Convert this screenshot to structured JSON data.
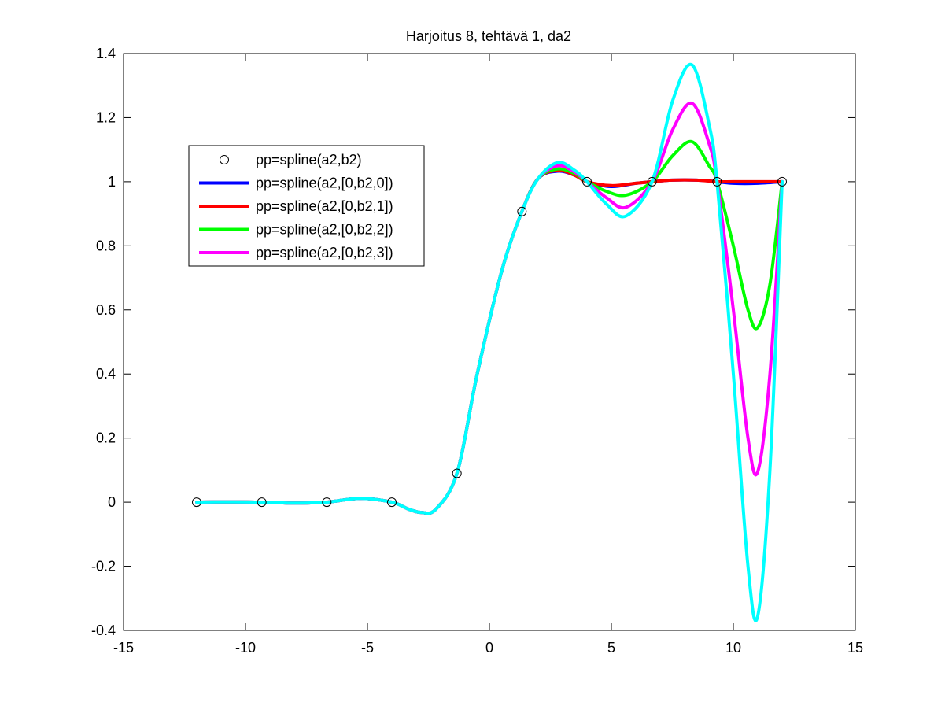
{
  "chart_data": {
    "type": "line",
    "title": "Harjoitus 8, tehtävä 1, da2",
    "xlabel": "",
    "ylabel": "",
    "xlim": [
      -15,
      15
    ],
    "ylim": [
      -0.4,
      1.4
    ],
    "xticks": [
      -15,
      -10,
      -5,
      0,
      5,
      10,
      15
    ],
    "yticks": [
      -0.4,
      -0.2,
      0,
      0.2,
      0.4,
      0.6,
      0.8,
      1,
      1.2,
      1.4
    ],
    "xtick_labels": [
      "-15",
      "-10",
      "-5",
      "0",
      "5",
      "10",
      "15"
    ],
    "ytick_labels": [
      "-0.4",
      "-0.2",
      "0",
      "0.2",
      "0.4",
      "0.6",
      "0.8",
      "1",
      "1.2",
      "1.4"
    ],
    "grid": false,
    "legend_position": "upper-left",
    "markers": {
      "name": "pp=spline(a2,b2)",
      "style": "open-circle",
      "color": "#000000",
      "x": [
        -12,
        -9.333,
        -6.667,
        -4,
        -1.333,
        1.333,
        4,
        6.667,
        9.333,
        12
      ],
      "y": [
        0,
        0,
        0,
        0,
        0.09,
        0.907,
        1,
        1,
        1,
        1
      ]
    },
    "series": [
      {
        "name": "pp=spline(a2,[0,b2,0])",
        "color": "#0000ff",
        "x": [
          -12,
          -10.5,
          -9.333,
          -8,
          -6.667,
          -5.3,
          -4,
          -3.3,
          -2.8,
          -2.2,
          -1.333,
          -0.5,
          0.5,
          1.333,
          2,
          2.8,
          3.5,
          4,
          5,
          6,
          6.667,
          7.5,
          8.5,
          9.333,
          10,
          11,
          12
        ],
        "y": [
          0,
          0.001,
          0,
          -0.003,
          0,
          0.012,
          0,
          -0.022,
          -0.032,
          -0.022,
          0.09,
          0.4,
          0.72,
          0.907,
          1.01,
          1.033,
          1.02,
          1,
          0.985,
          0.995,
          1,
          1.005,
          1.005,
          1,
          0.995,
          0.995,
          1
        ]
      },
      {
        "name": "pp=spline(a2,[0,b2,1])",
        "color": "#ff0000",
        "x": [
          -12,
          -10.5,
          -9.333,
          -8,
          -6.667,
          -5.3,
          -4,
          -3.3,
          -2.8,
          -2.2,
          -1.333,
          -0.5,
          0.5,
          1.333,
          2,
          2.8,
          3.5,
          4,
          5,
          6,
          6.667,
          7.5,
          8.5,
          9.333,
          10,
          11,
          12
        ],
        "y": [
          0,
          0.001,
          0,
          -0.003,
          0,
          0.012,
          0,
          -0.022,
          -0.032,
          -0.022,
          0.09,
          0.4,
          0.72,
          0.907,
          1.01,
          1.035,
          1.02,
          1,
          0.988,
          0.995,
          1,
          1.005,
          1.005,
          1,
          1,
          1,
          1
        ]
      },
      {
        "name": "pp=spline(a2,[0,b2,2])",
        "color": "#00ff00",
        "x": [
          -12,
          -10.5,
          -9.333,
          -8,
          -6.667,
          -5.3,
          -4,
          -3.3,
          -2.8,
          -2.2,
          -1.333,
          -0.5,
          0.5,
          1.333,
          2,
          2.8,
          3.5,
          4,
          4.8,
          5.6,
          6.667,
          7.5,
          8.3,
          9,
          9.333,
          10,
          10.6,
          11,
          11.5,
          12
        ],
        "y": [
          0,
          0.001,
          0,
          -0.003,
          0,
          0.012,
          0,
          -0.022,
          -0.032,
          -0.022,
          0.09,
          0.4,
          0.72,
          0.907,
          1.01,
          1.04,
          1.025,
          1,
          0.97,
          0.958,
          1,
          1.08,
          1.125,
          1.05,
          1,
          0.8,
          0.6,
          0.545,
          0.68,
          1
        ]
      },
      {
        "name": "pp=spline(a2,[0,b2,3])",
        "color": "#ff00ff",
        "x": [
          -12,
          -10.5,
          -9.333,
          -8,
          -6.667,
          -5.3,
          -4,
          -3.3,
          -2.8,
          -2.2,
          -1.333,
          -0.5,
          0.5,
          1.333,
          2,
          2.8,
          3.5,
          4,
          4.8,
          5.6,
          6.667,
          7.5,
          8.3,
          9,
          9.333,
          10,
          10.6,
          11,
          11.5,
          12
        ],
        "y": [
          0,
          0.001,
          0,
          -0.003,
          0,
          0.012,
          0,
          -0.022,
          -0.032,
          -0.022,
          0.09,
          0.4,
          0.72,
          0.907,
          1.01,
          1.05,
          1.03,
          1,
          0.95,
          0.92,
          1,
          1.16,
          1.245,
          1.12,
          1,
          0.6,
          0.2,
          0.095,
          0.4,
          1
        ]
      },
      {
        "name": "",
        "color": "#00ffff",
        "x": [
          -12,
          -10.5,
          -9.333,
          -8,
          -6.667,
          -5.3,
          -4,
          -3.3,
          -2.8,
          -2.2,
          -1.333,
          -0.5,
          0.5,
          1.333,
          2,
          2.8,
          3.5,
          4,
          4.8,
          5.6,
          6.667,
          7.5,
          8.3,
          9,
          9.333,
          10,
          10.6,
          11,
          11.5,
          12
        ],
        "y": [
          0,
          0.001,
          0,
          -0.003,
          0,
          0.012,
          0,
          -0.022,
          -0.032,
          -0.022,
          0.09,
          0.4,
          0.72,
          0.907,
          1.01,
          1.06,
          1.035,
          1,
          0.93,
          0.893,
          1,
          1.25,
          1.365,
          1.18,
          1,
          0.4,
          -0.2,
          -0.355,
          0.1,
          1
        ]
      }
    ]
  }
}
